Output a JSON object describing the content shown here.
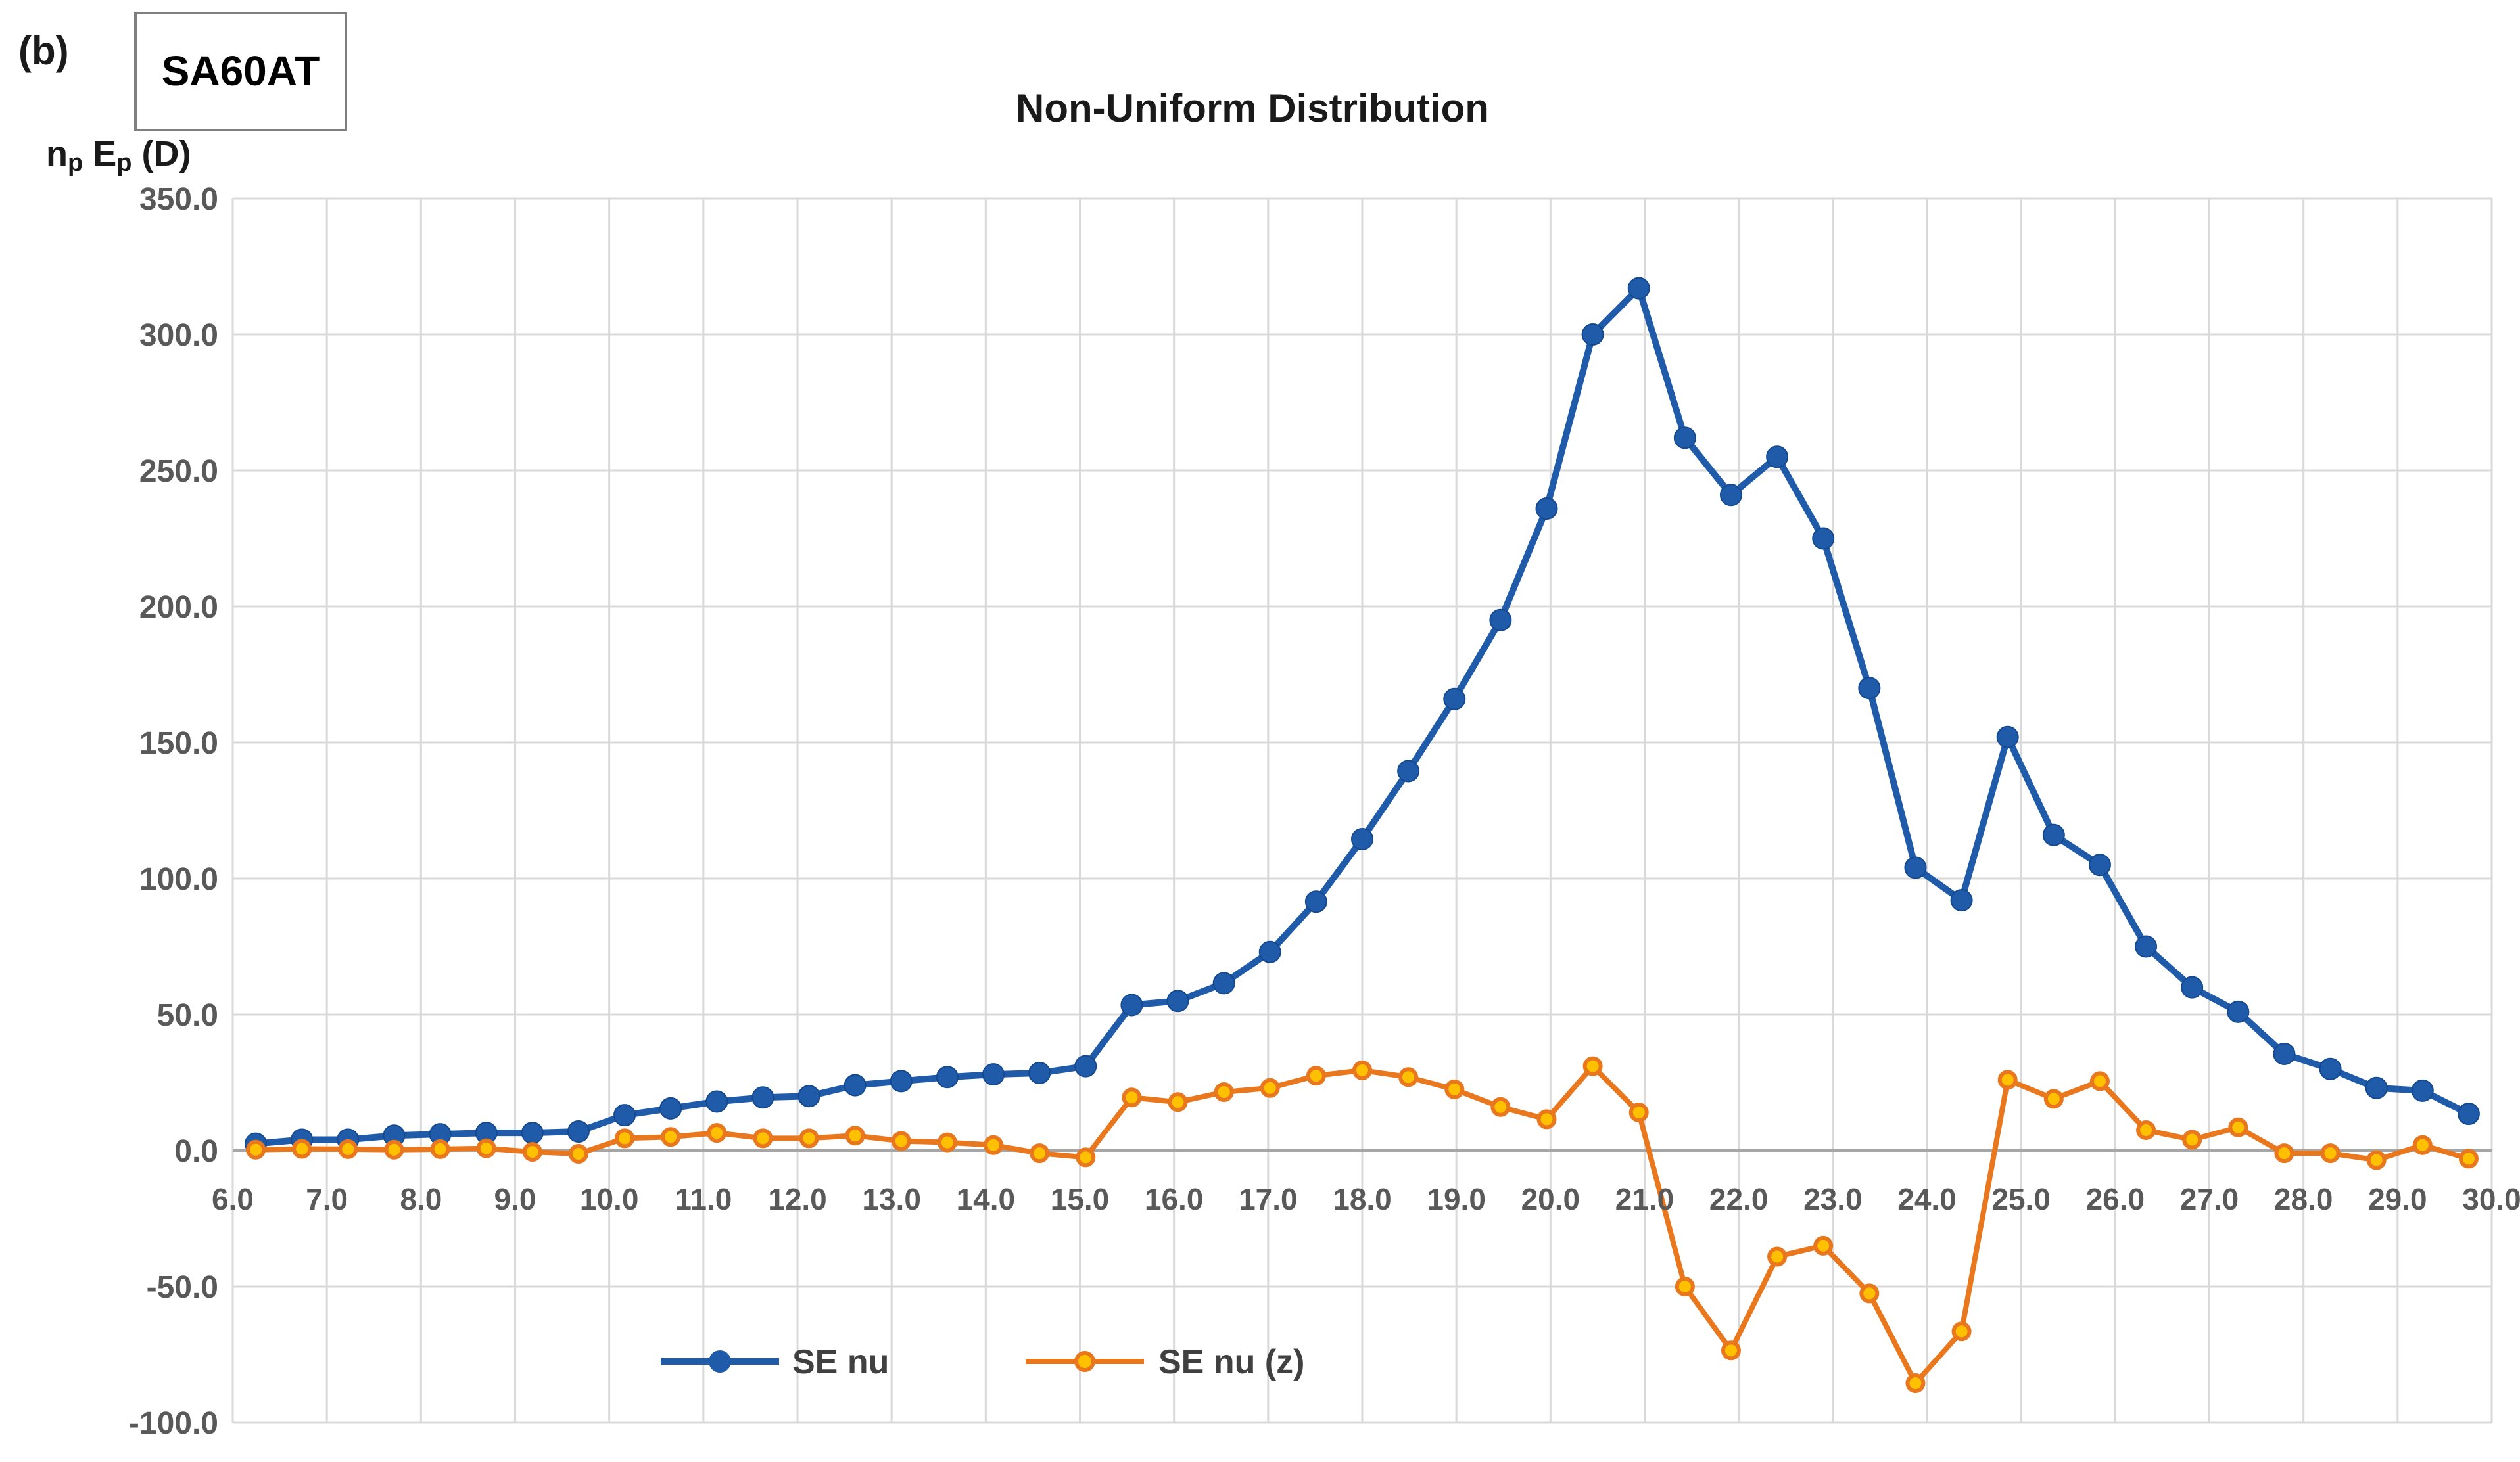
{
  "header": {
    "panel_label": "(b)",
    "box_label": "SA60AT"
  },
  "chart": {
    "title": "Non-Uniform Distribution",
    "y_axis_title_parts": [
      {
        "text": "n",
        "sub": false
      },
      {
        "text": "p",
        "sub": true
      },
      {
        "text": " E",
        "sub": false
      },
      {
        "text": "p",
        "sub": true
      },
      {
        "text": " (D)",
        "sub": false
      }
    ],
    "colors": {
      "blue": "#1F5BA9",
      "blue_dark": "#15498F",
      "orange": "#E8771E",
      "orange_marker_fill": "#FFC000",
      "grid": "#D9D9D9",
      "zero_axis": "#A6A6A6",
      "tick_text": "#595959",
      "title_text": "#1A1A1A",
      "legend_text": "#404040",
      "box_border": "#7F7F7F"
    }
  },
  "chart_data": {
    "type": "line",
    "title": "Non-Uniform Distribution",
    "xlabel": "",
    "ylabel": "np Ep (D)",
    "xlim": [
      6.0,
      30.0
    ],
    "ylim": [
      -100.0,
      350.0
    ],
    "y_tick_step": 50.0,
    "grid": true,
    "legend_position": "bottom-inside",
    "x": [
      6.0,
      6.5,
      7.0,
      7.5,
      8.0,
      8.5,
      9.0,
      9.5,
      10.0,
      10.5,
      11.0,
      11.5,
      12.0,
      12.5,
      13.0,
      13.5,
      14.0,
      14.5,
      15.0,
      15.5,
      16.0,
      16.5,
      17.0,
      17.5,
      18.0,
      18.5,
      19.0,
      19.5,
      20.0,
      20.5,
      21.0,
      21.5,
      22.0,
      22.5,
      23.0,
      23.5,
      24.0,
      24.5,
      25.0,
      25.5,
      26.0,
      26.5,
      27.0,
      27.5,
      28.0,
      28.5,
      29.0,
      29.5,
      30.0
    ],
    "x_tick_labels": [
      "6.0",
      "7.0",
      "8.0",
      "9.0",
      "10.0",
      "11.0",
      "12.0",
      "13.0",
      "14.0",
      "15.0",
      "16.0",
      "17.0",
      "18.0",
      "19.0",
      "20.0",
      "21.0",
      "22.0",
      "23.0",
      "24.0",
      "25.0",
      "26.0",
      "27.0",
      "28.0",
      "29.0",
      "30.0"
    ],
    "y_tick_labels": [
      "350.0",
      "300.0",
      "250.0",
      "200.0",
      "150.0",
      "100.0",
      "50.0",
      "0.0",
      "-50.0",
      "-100.0"
    ],
    "series": [
      {
        "name": "SE nu",
        "color": "#1F5BA9",
        "marker": "filled-circle",
        "values": [
          2.5,
          4,
          4,
          5.5,
          6,
          6.5,
          6.5,
          7,
          13,
          15.5,
          18,
          19.5,
          20,
          24,
          25.5,
          27,
          28,
          28.5,
          31,
          53.5,
          55,
          61.5,
          73,
          91.5,
          114.5,
          139.5,
          166,
          195,
          236,
          300,
          317,
          262,
          241,
          255,
          225,
          170,
          104,
          92,
          152,
          116,
          105,
          75,
          60,
          51,
          35.5,
          30,
          23,
          22,
          13.5
        ]
      },
      {
        "name": "SE nu (z)",
        "color": "#E8771E",
        "marker": "ring-circle",
        "marker_fill": "#FFC000",
        "values": [
          0.3,
          0.6,
          0.5,
          0.3,
          0.5,
          0.8,
          -0.5,
          -1.2,
          4.5,
          5,
          6.5,
          4.5,
          4.5,
          5.5,
          3.5,
          3,
          2,
          -1,
          -2.5,
          19.5,
          17.8,
          21.5,
          23,
          27.5,
          29.5,
          27,
          22.5,
          16,
          11.5,
          31,
          14,
          -50,
          -73.5,
          -39,
          -35,
          -52.5,
          -85.5,
          -66.5,
          26,
          19,
          25.5,
          7.5,
          4,
          8.5,
          -1,
          -1,
          -3.5,
          2,
          -3
        ]
      }
    ]
  }
}
